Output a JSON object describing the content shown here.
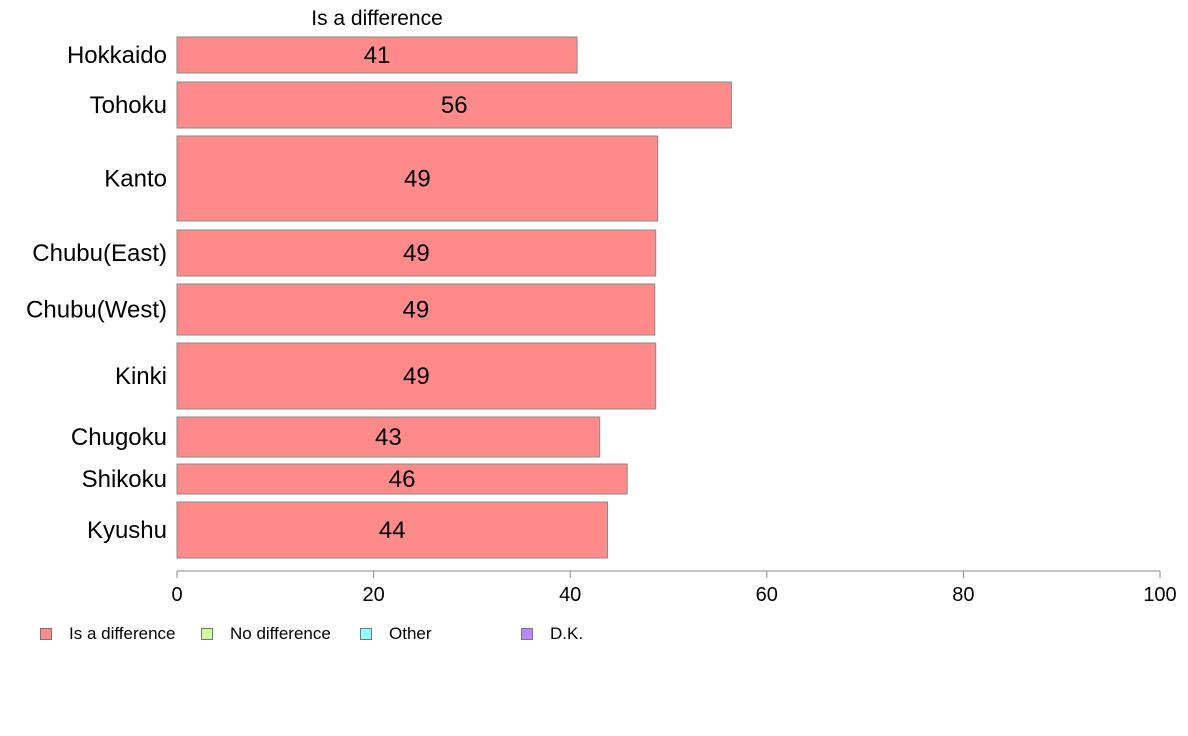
{
  "chart_data": {
    "type": "bar",
    "orientation": "horizontal",
    "title": "Is a difference",
    "categories": [
      "Hokkaido",
      "Tohoku",
      "Kanto",
      "Chubu(East)",
      "Chubu(West)",
      "Kinki",
      "Chugoku",
      "Shikoku",
      "Kyushu"
    ],
    "series": [
      {
        "name": "Is a difference",
        "values": [
          40.7,
          56.4,
          48.9,
          48.7,
          48.6,
          48.7,
          43.0,
          45.8,
          43.8
        ],
        "labels": [
          "41",
          "56",
          "49",
          "49",
          "49",
          "49",
          "43",
          "46",
          "44"
        ]
      }
    ],
    "xlim": [
      0,
      100
    ],
    "xticks": [
      "0",
      "20",
      "40",
      "60",
      "80",
      "100"
    ],
    "grid": false,
    "bar_color": "#ff8a8a",
    "legend_position": "bottom-left",
    "legend": [
      {
        "label": "Is a difference",
        "color": "#ff8a8a"
      },
      {
        "label": "No difference",
        "color": "#ccff99"
      },
      {
        "label": "Other",
        "color": "#8cffff"
      },
      {
        "label": "D.K.",
        "color": "#bb88ff"
      }
    ]
  }
}
